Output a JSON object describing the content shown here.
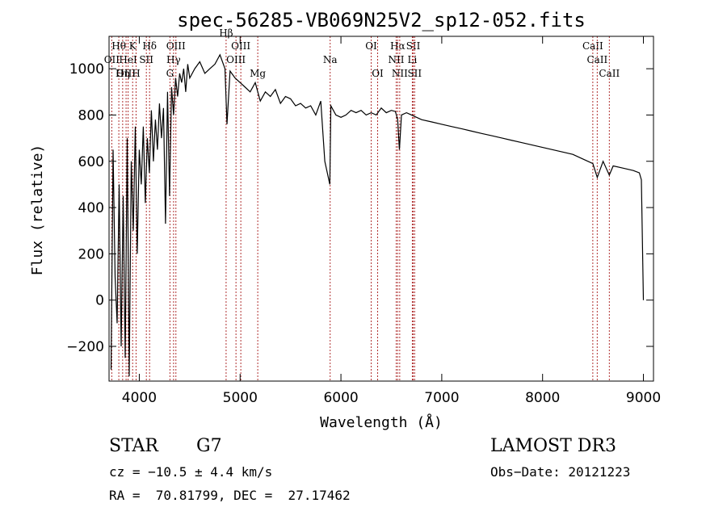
{
  "chart_data": {
    "type": "line",
    "title": "spec-56285-VB069N25V2_sp12-052.fits",
    "xlabel": "Wavelength (Å)",
    "ylabel": "Flux (relative)",
    "xlim": [
      3700,
      9100
    ],
    "ylim": [
      -350,
      1140
    ],
    "xticks": [
      4000,
      5000,
      6000,
      7000,
      8000,
      9000
    ],
    "yticks": [
      -200,
      0,
      200,
      400,
      600,
      800,
      1000
    ],
    "xtick_labels": [
      "4000",
      "5000",
      "6000",
      "7000",
      "8000",
      "9000"
    ],
    "ytick_labels": [
      "−200",
      "0",
      "200",
      "400",
      "600",
      "800",
      "1000"
    ],
    "series": [
      {
        "name": "flux",
        "x": [
          3720,
          3740,
          3760,
          3780,
          3800,
          3820,
          3840,
          3860,
          3880,
          3900,
          3920,
          3940,
          3960,
          3980,
          4000,
          4020,
          4040,
          4060,
          4080,
          4100,
          4120,
          4140,
          4160,
          4180,
          4200,
          4220,
          4240,
          4260,
          4280,
          4300,
          4320,
          4340,
          4360,
          4380,
          4400,
          4420,
          4440,
          4460,
          4480,
          4500,
          4550,
          4600,
          4650,
          4700,
          4750,
          4800,
          4850,
          4870,
          4900,
          4950,
          5000,
          5050,
          5100,
          5150,
          5200,
          5250,
          5300,
          5350,
          5400,
          5450,
          5500,
          5550,
          5600,
          5650,
          5700,
          5750,
          5800,
          5840,
          5890,
          5900,
          5950,
          6000,
          6050,
          6100,
          6150,
          6200,
          6250,
          6300,
          6350,
          6400,
          6450,
          6500,
          6540,
          6563,
          6580,
          6600,
          6650,
          6700,
          6750,
          6800,
          6900,
          7000,
          7100,
          7200,
          7300,
          7400,
          7500,
          7600,
          7700,
          7800,
          7900,
          8000,
          8100,
          8200,
          8300,
          8400,
          8498,
          8542,
          8600,
          8662,
          8700,
          8800,
          8900,
          8960,
          8980,
          9000
        ],
        "y": [
          -300,
          650,
          100,
          -100,
          500,
          -200,
          450,
          -250,
          700,
          -330,
          600,
          300,
          750,
          200,
          650,
          500,
          750,
          420,
          700,
          550,
          820,
          600,
          780,
          650,
          850,
          700,
          830,
          330,
          900,
          450,
          920,
          800,
          960,
          880,
          980,
          940,
          1000,
          900,
          1020,
          960,
          1000,
          1030,
          980,
          1000,
          1020,
          1060,
          1000,
          760,
          990,
          960,
          940,
          920,
          900,
          940,
          860,
          900,
          880,
          910,
          850,
          880,
          870,
          840,
          850,
          830,
          840,
          800,
          860,
          600,
          500,
          840,
          800,
          790,
          800,
          820,
          810,
          820,
          800,
          810,
          800,
          830,
          810,
          820,
          815,
          780,
          650,
          800,
          810,
          800,
          790,
          780,
          770,
          760,
          750,
          740,
          730,
          720,
          710,
          700,
          690,
          680,
          670,
          660,
          650,
          640,
          630,
          610,
          590,
          530,
          600,
          540,
          580,
          570,
          560,
          550,
          520,
          0
        ]
      }
    ],
    "lines": [
      {
        "name": "Hθ",
        "x": 3797,
        "row": 1
      },
      {
        "name": "OII",
        "x": 3727,
        "row": 2
      },
      {
        "name": "OIII",
        "x": 3869,
        "row": 3
      },
      {
        "name": "K",
        "x": 3934,
        "row": 1
      },
      {
        "name": "HeI",
        "x": 3889,
        "row": 2
      },
      {
        "name": "Hη",
        "x": 3835,
        "row": 3
      },
      {
        "name": "SII",
        "x": 4070,
        "row": 2
      },
      {
        "name": "H",
        "x": 3968,
        "row": 3
      },
      {
        "name": "Hδ",
        "x": 4102,
        "row": 1
      },
      {
        "name": "OIII",
        "x": 4363,
        "row": 1
      },
      {
        "name": "Hγ",
        "x": 4340,
        "row": 2
      },
      {
        "name": "G",
        "x": 4304,
        "row": 3
      },
      {
        "name": "OIII",
        "x": 5007,
        "row": 1
      },
      {
        "name": "OIII",
        "x": 4959,
        "row": 2
      },
      {
        "name": "Hβ",
        "x": 4861,
        "row": 0
      },
      {
        "name": "Mg",
        "x": 5175,
        "row": 3
      },
      {
        "name": "Na",
        "x": 5893,
        "row": 2
      },
      {
        "name": "OI",
        "x": 6300,
        "row": 1
      },
      {
        "name": "OI",
        "x": 6364,
        "row": 3
      },
      {
        "name": "Hα",
        "x": 6563,
        "row": 1
      },
      {
        "name": "NII",
        "x": 6548,
        "row": 2
      },
      {
        "name": "NII",
        "x": 6583,
        "row": 3
      },
      {
        "name": "SII",
        "x": 6717,
        "row": 1
      },
      {
        "name": "Li",
        "x": 6708,
        "row": 2
      },
      {
        "name": "SII",
        "x": 6731,
        "row": 3
      },
      {
        "name": "CaII",
        "x": 8498,
        "row": 1
      },
      {
        "name": "CaII",
        "x": 8542,
        "row": 2
      },
      {
        "name": "CaII",
        "x": 8662,
        "row": 3
      }
    ]
  },
  "info": {
    "class": "STAR",
    "subclass": "G7",
    "survey": "LAMOST DR3",
    "cz": "cz = −10.5 ± 4.4 km/s",
    "obs_date": "Obs−Date: 20121223",
    "coords": "RA =  70.81799, DEC =  27.17462"
  }
}
